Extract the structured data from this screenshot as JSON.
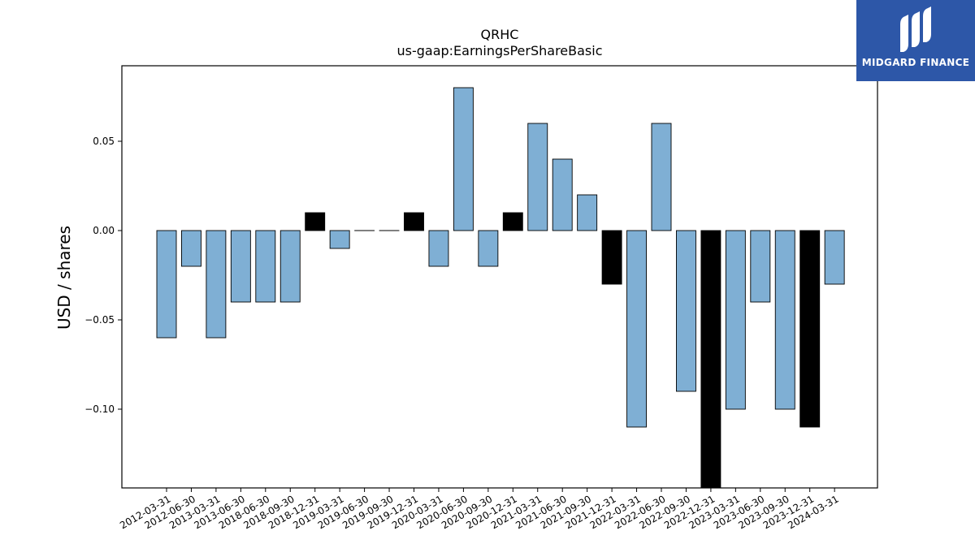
{
  "chart_data": {
    "type": "bar",
    "title": "QRHC",
    "subtitle": "us-gaap:EarningsPerShareBasic",
    "xlabel": "",
    "ylabel": "USD / shares",
    "ylim": [
      -0.145,
      0.093
    ],
    "yticks": [
      0.05,
      0.0,
      -0.05,
      -0.1
    ],
    "ytick_labels": [
      "0.05",
      "0.00",
      "−0.05",
      "−0.10"
    ],
    "grid": false,
    "categories": [
      "2012-03-31",
      "2012-06-30",
      "2013-03-31",
      "2013-06-30",
      "2018-06-30",
      "2018-09-30",
      "2018-12-31",
      "2019-03-31",
      "2019-06-30",
      "2019-09-30",
      "2019-12-31",
      "2020-03-31",
      "2020-06-30",
      "2020-09-30",
      "2020-12-31",
      "2021-03-31",
      "2021-06-30",
      "2021-09-30",
      "2021-12-31",
      "2022-03-31",
      "2022-06-30",
      "2022-09-30",
      "2022-12-31",
      "2023-03-31",
      "2023-06-30",
      "2023-09-30",
      "2023-12-31",
      "2024-03-31"
    ],
    "values": [
      -0.06,
      -0.02,
      -0.06,
      -0.04,
      -0.04,
      -0.04,
      0.01,
      -0.01,
      0.0,
      0.0,
      0.01,
      -0.02,
      0.08,
      -0.02,
      0.01,
      0.06,
      0.04,
      0.02,
      -0.03,
      -0.11,
      0.06,
      -0.09,
      -0.145,
      -0.1,
      -0.04,
      -0.1,
      -0.11,
      -0.03
    ],
    "bar_colors": [
      "#7fafd4",
      "#7fafd4",
      "#7fafd4",
      "#7fafd4",
      "#7fafd4",
      "#7fafd4",
      "#000000",
      "#7fafd4",
      "#7fafd4",
      "#7fafd4",
      "#000000",
      "#7fafd4",
      "#7fafd4",
      "#7fafd4",
      "#000000",
      "#7fafd4",
      "#7fafd4",
      "#7fafd4",
      "#000000",
      "#7fafd4",
      "#7fafd4",
      "#7fafd4",
      "#000000",
      "#7fafd4",
      "#7fafd4",
      "#7fafd4",
      "#000000",
      "#7fafd4"
    ]
  },
  "logo": {
    "text": "MIDGARD FINANCE",
    "background": "#2d57a8",
    "icon": "midgard-logo-icon"
  }
}
